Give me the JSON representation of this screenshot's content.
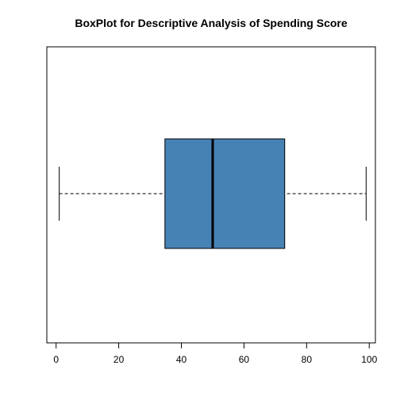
{
  "chart_data": {
    "type": "boxplot",
    "title": "BoxPlot for Descriptive Analysis of Spending Score",
    "orientation": "horizontal",
    "xlim": [
      -2.96,
      101.96
    ],
    "x_ticks": [
      "0",
      "20",
      "40",
      "60",
      "80",
      "100"
    ],
    "x_tick_values": [
      0,
      20,
      40,
      60,
      80,
      100
    ],
    "box": {
      "min": 1,
      "q1": 34.75,
      "median": 50,
      "q3": 73,
      "max": 99
    },
    "box_fill": "#4682B4",
    "grid": false,
    "legend": "none"
  }
}
